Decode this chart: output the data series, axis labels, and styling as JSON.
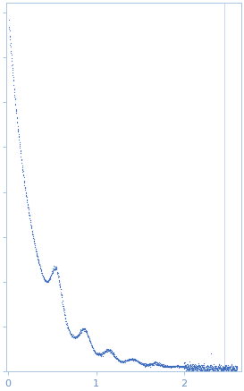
{
  "background_color": "#ffffff",
  "dot_color": "#3a6abf",
  "dot_size": 0.8,
  "figsize": [
    2.73,
    4.37
  ],
  "dpi": 100,
  "xlim": [
    -0.02,
    2.65
  ],
  "xticks": [
    0,
    1,
    2
  ],
  "spine_color": "#aac4e0",
  "tick_color": "#aac4e0",
  "tick_label_color": "#6a90c0",
  "vline_x": 2.45,
  "vline_color": "#c5d8ee",
  "outlier_q": 2.3,
  "outlier_scale": 6.0,
  "n_points_dense": 900,
  "n_points_sparse": 400,
  "q_min": 0.01,
  "q_max": 2.6
}
